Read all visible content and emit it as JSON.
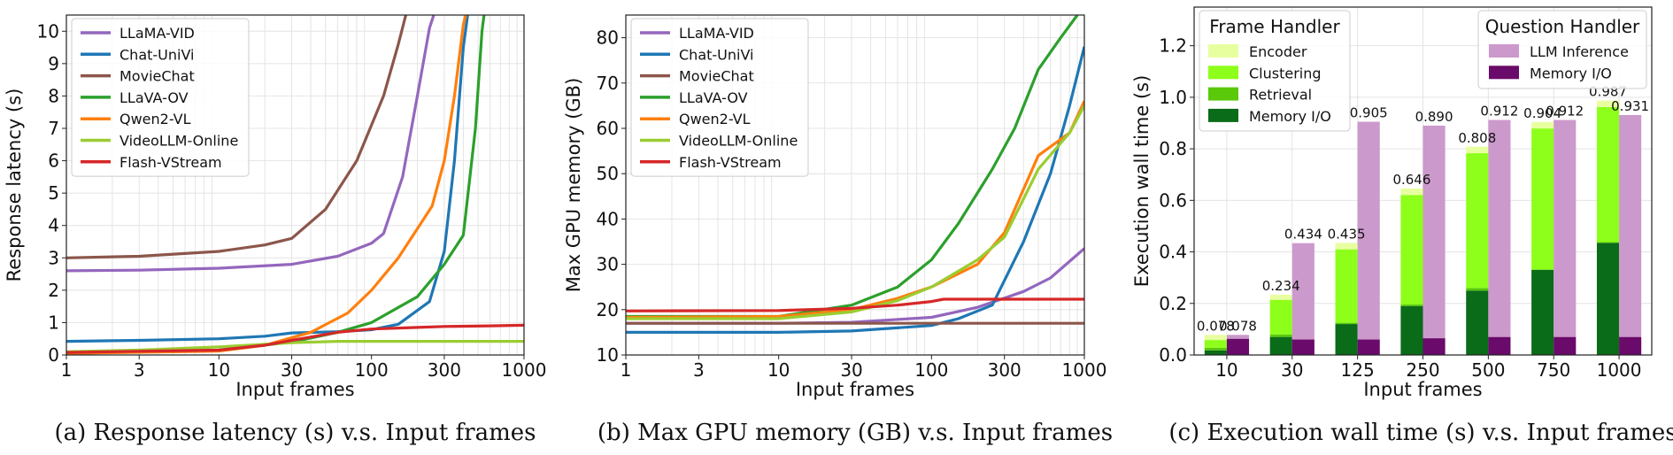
{
  "chart_data": [
    {
      "type": "line",
      "caption": "(a) Response latency (s) v.s. Input frames",
      "xlabel": "Input frames",
      "ylabel": "Response latency (s)",
      "xscale": "log",
      "xlim": [
        1,
        1000
      ],
      "ylim": [
        0,
        10.5
      ],
      "xticks": [
        1,
        3,
        10,
        30,
        100,
        300,
        1000
      ],
      "xtick_labels": [
        "1",
        "3",
        "10",
        "30",
        "100",
        "300",
        "1000"
      ],
      "yticks": [
        0,
        1,
        2,
        3,
        4,
        5,
        6,
        7,
        8,
        9,
        10
      ],
      "ytick_labels": [
        "0",
        "1",
        "2",
        "3",
        "4",
        "5",
        "6",
        "7",
        "8",
        "9",
        "10"
      ],
      "legend_position": "top-left",
      "series": [
        {
          "name": "LLaMA-VID",
          "color": "#9467bd",
          "points": [
            [
              1,
              2.6
            ],
            [
              3,
              2.62
            ],
            [
              10,
              2.68
            ],
            [
              30,
              2.8
            ],
            [
              60,
              3.05
            ],
            [
              100,
              3.45
            ],
            [
              120,
              3.75
            ],
            [
              160,
              5.5
            ],
            [
              200,
              8.0
            ],
            [
              240,
              10.1
            ],
            [
              260,
              10.6
            ]
          ]
        },
        {
          "name": "Chat-UniVi",
          "color": "#1f77b4",
          "points": [
            [
              1,
              0.42
            ],
            [
              3,
              0.45
            ],
            [
              10,
              0.5
            ],
            [
              20,
              0.58
            ],
            [
              30,
              0.68
            ],
            [
              60,
              0.72
            ],
            [
              100,
              0.78
            ],
            [
              150,
              0.95
            ],
            [
              240,
              1.65
            ],
            [
              300,
              3.2
            ],
            [
              350,
              6.0
            ],
            [
              400,
              9.5
            ],
            [
              430,
              10.6
            ]
          ]
        },
        {
          "name": "MovieChat",
          "color": "#8c564b",
          "points": [
            [
              1,
              3.0
            ],
            [
              3,
              3.05
            ],
            [
              10,
              3.2
            ],
            [
              20,
              3.4
            ],
            [
              30,
              3.6
            ],
            [
              50,
              4.5
            ],
            [
              80,
              6.0
            ],
            [
              120,
              8.0
            ],
            [
              150,
              9.6
            ],
            [
              170,
              10.6
            ]
          ]
        },
        {
          "name": "LLaVA-OV",
          "color": "#2ca02c",
          "points": [
            [
              1,
              0.05
            ],
            [
              10,
              0.15
            ],
            [
              30,
              0.4
            ],
            [
              60,
              0.7
            ],
            [
              100,
              1.0
            ],
            [
              200,
              1.8
            ],
            [
              300,
              2.8
            ],
            [
              400,
              3.7
            ],
            [
              480,
              7.0
            ],
            [
              530,
              10.0
            ],
            [
              550,
              10.6
            ]
          ]
        },
        {
          "name": "Qwen2-VL",
          "color": "#ff7f0e",
          "points": [
            [
              1,
              0.05
            ],
            [
              10,
              0.12
            ],
            [
              20,
              0.3
            ],
            [
              40,
              0.7
            ],
            [
              70,
              1.3
            ],
            [
              100,
              2.0
            ],
            [
              150,
              3.0
            ],
            [
              200,
              3.9
            ],
            [
              250,
              4.6
            ],
            [
              300,
              6.0
            ],
            [
              350,
              8.0
            ],
            [
              400,
              10.2
            ],
            [
              420,
              10.6
            ]
          ]
        },
        {
          "name": "VideoLLM-Online",
          "color": "#9acd32",
          "points": [
            [
              1,
              0.1
            ],
            [
              3,
              0.15
            ],
            [
              10,
              0.25
            ],
            [
              30,
              0.38
            ],
            [
              60,
              0.42
            ],
            [
              100,
              0.42
            ],
            [
              300,
              0.42
            ],
            [
              1000,
              0.42
            ]
          ]
        },
        {
          "name": "Flash-VStream",
          "color": "#d62728",
          "points": [
            [
              1,
              0.08
            ],
            [
              10,
              0.15
            ],
            [
              20,
              0.3
            ],
            [
              30,
              0.45
            ],
            [
              60,
              0.7
            ],
            [
              100,
              0.8
            ],
            [
              200,
              0.85
            ],
            [
              300,
              0.88
            ],
            [
              600,
              0.9
            ],
            [
              1000,
              0.92
            ]
          ]
        }
      ]
    },
    {
      "type": "line",
      "caption": "(b) Max GPU memory (GB) v.s. Input frames",
      "xlabel": "Input frames",
      "ylabel": "Max GPU memory (GB)",
      "xscale": "log",
      "xlim": [
        1,
        1000
      ],
      "ylim": [
        10,
        85
      ],
      "xticks": [
        1,
        3,
        10,
        30,
        100,
        300,
        1000
      ],
      "xtick_labels": [
        "1",
        "3",
        "10",
        "30",
        "100",
        "300",
        "1000"
      ],
      "yticks": [
        10,
        20,
        30,
        40,
        50,
        60,
        70,
        80
      ],
      "ytick_labels": [
        "10",
        "20",
        "30",
        "40",
        "50",
        "60",
        "70",
        "80"
      ],
      "legend_position": "top-left",
      "series": [
        {
          "name": "LLaMA-VID",
          "color": "#9467bd",
          "points": [
            [
              1,
              17
            ],
            [
              10,
              17
            ],
            [
              30,
              17.2
            ],
            [
              100,
              18.3
            ],
            [
              200,
              20.5
            ],
            [
              400,
              24
            ],
            [
              600,
              27
            ],
            [
              1000,
              33.5
            ]
          ]
        },
        {
          "name": "Chat-UniVi",
          "color": "#1f77b4",
          "points": [
            [
              1,
              15
            ],
            [
              10,
              15
            ],
            [
              30,
              15.3
            ],
            [
              100,
              16.5
            ],
            [
              150,
              18
            ],
            [
              250,
              21
            ],
            [
              400,
              35
            ],
            [
              600,
              50
            ],
            [
              800,
              65
            ],
            [
              1000,
              78
            ]
          ]
        },
        {
          "name": "MovieChat",
          "color": "#8c564b",
          "points": [
            [
              1,
              17
            ],
            [
              10,
              17
            ],
            [
              100,
              17
            ],
            [
              1000,
              17
            ]
          ]
        },
        {
          "name": "LLaVA-OV",
          "color": "#2ca02c",
          "points": [
            [
              1,
              18.5
            ],
            [
              10,
              18.5
            ],
            [
              30,
              21
            ],
            [
              60,
              25
            ],
            [
              100,
              31
            ],
            [
              150,
              39
            ],
            [
              250,
              51
            ],
            [
              350,
              60
            ],
            [
              500,
              73
            ],
            [
              700,
              80
            ],
            [
              900,
              85
            ]
          ]
        },
        {
          "name": "Qwen2-VL",
          "color": "#ff7f0e",
          "points": [
            [
              1,
              18.3
            ],
            [
              10,
              18.5
            ],
            [
              30,
              20
            ],
            [
              60,
              22.5
            ],
            [
              100,
              25
            ],
            [
              200,
              30
            ],
            [
              300,
              37
            ],
            [
              500,
              54
            ],
            [
              800,
              59
            ],
            [
              1000,
              66
            ]
          ]
        },
        {
          "name": "VideoLLM-Online",
          "color": "#9acd32",
          "points": [
            [
              1,
              18
            ],
            [
              10,
              18
            ],
            [
              30,
              19.5
            ],
            [
              60,
              22
            ],
            [
              100,
              25
            ],
            [
              200,
              31
            ],
            [
              300,
              36
            ],
            [
              500,
              51
            ],
            [
              800,
              59
            ],
            [
              1000,
              65
            ]
          ]
        },
        {
          "name": "Flash-VStream",
          "color": "#d62728",
          "points": [
            [
              1,
              19.7
            ],
            [
              10,
              19.8
            ],
            [
              30,
              20.3
            ],
            [
              60,
              21
            ],
            [
              100,
              21.8
            ],
            [
              120,
              22.3
            ],
            [
              1000,
              22.3
            ]
          ]
        }
      ]
    },
    {
      "type": "bar",
      "caption": "(c) Execution wall time (s) v.s. Input frames",
      "xlabel": "Input frames",
      "ylabel": "Execution wall time (s)",
      "ylim": [
        0,
        1.35
      ],
      "yticks": [
        0.0,
        0.2,
        0.4,
        0.6,
        0.8,
        1.0,
        1.2
      ],
      "ytick_labels": [
        "0.0",
        "0.2",
        "0.4",
        "0.6",
        "0.8",
        "1.0",
        "1.2"
      ],
      "categories": [
        "10",
        "30",
        "125",
        "250",
        "500",
        "750",
        "1000"
      ],
      "legend_groups": [
        {
          "title": "Frame Handler",
          "position": "top-left"
        },
        {
          "title": "Question Handler",
          "position": "top-right"
        }
      ],
      "frame_handler_series": [
        {
          "name": "Encoder",
          "color": "#e8ffa0",
          "values": [
            0.02,
            0.02,
            0.025,
            0.025,
            0.025,
            0.025,
            0.025
          ]
        },
        {
          "name": "Clustering",
          "color": "#8eff1a",
          "values": [
            0.03,
            0.134,
            0.285,
            0.425,
            0.523,
            0.547,
            0.524
          ]
        },
        {
          "name": "Retrieval",
          "color": "#59c90a",
          "values": [
            0.01,
            0.01,
            0.005,
            0.006,
            0.01,
            0.002,
            0.003
          ]
        },
        {
          "name": "Memory I/O",
          "color": "#0a6b18",
          "values": [
            0.018,
            0.07,
            0.12,
            0.19,
            0.25,
            0.33,
            0.435
          ]
        }
      ],
      "question_handler_series": [
        {
          "name": "LLM Inference",
          "color": "#cc99cc",
          "values": [
            0.015,
            0.374,
            0.845,
            0.825,
            0.842,
            0.842,
            0.861
          ]
        },
        {
          "name": "Memory I/O",
          "color": "#6a0a6a",
          "values": [
            0.063,
            0.06,
            0.06,
            0.065,
            0.07,
            0.07,
            0.07
          ]
        }
      ],
      "frame_handler_totals": [
        0.078,
        0.234,
        0.435,
        0.646,
        0.808,
        0.904,
        0.987
      ],
      "question_handler_totals": [
        0.078,
        0.434,
        0.905,
        0.89,
        0.912,
        0.912,
        0.931
      ],
      "frame_handler_total_labels": [
        "0.078",
        "0.234",
        "0.435",
        "0.646",
        "0.808",
        "0.904",
        "0.987"
      ],
      "question_handler_total_labels": [
        "0.078",
        "0.434",
        "0.905",
        "0.890",
        "0.912",
        "0.912",
        "0.931"
      ]
    }
  ]
}
